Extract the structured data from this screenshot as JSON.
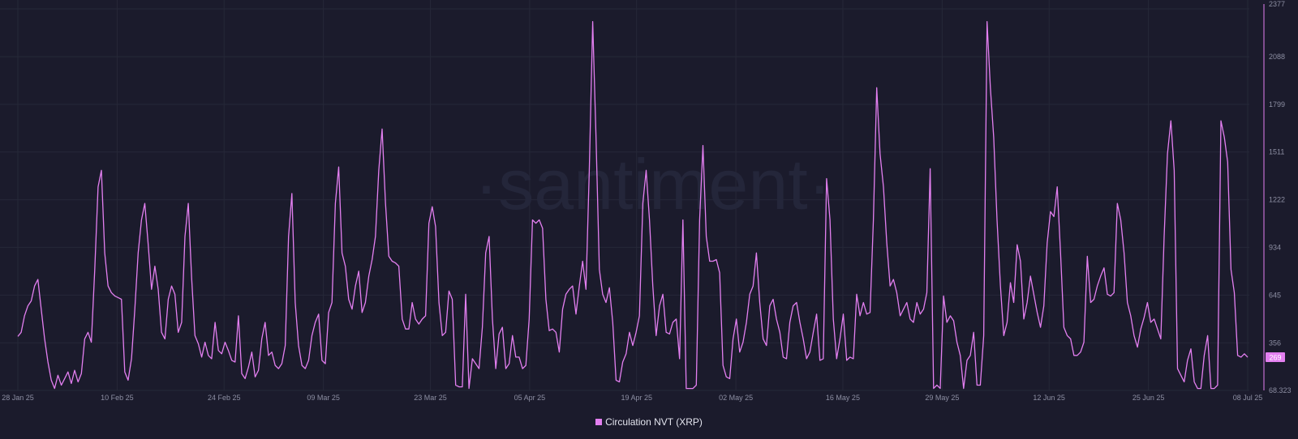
{
  "watermark": "·santiment·",
  "chart_data": {
    "type": "line",
    "series": [
      {
        "name": "Circulation NVT (XRP)",
        "color": "#e37ff0",
        "last_value_label": "269",
        "start_date": "2025-01-28",
        "end_date": "2025-07-08",
        "values": [
          395,
          420,
          520,
          580,
          610,
          700,
          740,
          560,
          380,
          240,
          130,
          80,
          160,
          100,
          140,
          180,
          110,
          190,
          120,
          170,
          380,
          420,
          360,
          800,
          1300,
          1400,
          900,
          700,
          660,
          640,
          630,
          620,
          180,
          130,
          260,
          560,
          900,
          1100,
          1200,
          950,
          680,
          820,
          680,
          420,
          380,
          620,
          700,
          650,
          420,
          480,
          1000,
          1200,
          750,
          400,
          350,
          270,
          360,
          280,
          260,
          480,
          310,
          290,
          360,
          310,
          250,
          240,
          520,
          170,
          140,
          210,
          300,
          150,
          190,
          380,
          480,
          280,
          300,
          220,
          200,
          230,
          340,
          1000,
          1260,
          600,
          340,
          220,
          200,
          250,
          400,
          480,
          530,
          250,
          230,
          540,
          600,
          1200,
          1420,
          900,
          820,
          620,
          560,
          700,
          790,
          540,
          600,
          760,
          860,
          1000,
          1400,
          1650,
          1200,
          880,
          850,
          840,
          820,
          500,
          440,
          440,
          600,
          500,
          470,
          500,
          520,
          1080,
          1180,
          1060,
          600,
          400,
          420,
          670,
          620,
          100,
          90,
          90,
          650,
          80,
          260,
          230,
          200,
          450,
          900,
          1000,
          500,
          200,
          410,
          450,
          200,
          230,
          400,
          270,
          270,
          200,
          220,
          500,
          1100,
          1080,
          1100,
          1050,
          620,
          430,
          440,
          420,
          300,
          560,
          650,
          680,
          700,
          530,
          700,
          850,
          680,
          1400,
          2300,
          1600,
          800,
          650,
          600,
          690,
          480,
          130,
          120,
          240,
          290,
          420,
          340,
          420,
          520,
          1200,
          1400,
          1100,
          700,
          400,
          580,
          650,
          420,
          410,
          480,
          500,
          260,
          1100,
          80,
          80,
          80,
          100,
          1100,
          1550,
          1000,
          850,
          850,
          860,
          780,
          220,
          150,
          140,
          380,
          500,
          300,
          360,
          480,
          650,
          700,
          900,
          600,
          380,
          340,
          580,
          620,
          500,
          420,
          270,
          260,
          480,
          580,
          600,
          480,
          380,
          260,
          300,
          420,
          530,
          250,
          260,
          1350,
          1100,
          500,
          260,
          380,
          530,
          250,
          270,
          260,
          650,
          520,
          600,
          530,
          540,
          1100,
          1900,
          1500,
          1300,
          960,
          700,
          740,
          660,
          520,
          560,
          600,
          500,
          480,
          600,
          530,
          560,
          660,
          1410,
          80,
          100,
          80,
          640,
          480,
          520,
          490,
          360,
          280,
          80,
          250,
          280,
          420,
          100,
          100,
          400,
          2300,
          1900,
          1600,
          1100,
          700,
          400,
          480,
          720,
          600,
          950,
          850,
          500,
          600,
          760,
          650,
          540,
          450,
          580,
          960,
          1150,
          1120,
          1300,
          900,
          450,
          400,
          380,
          280,
          280,
          300,
          360,
          880,
          600,
          620,
          700,
          760,
          810,
          650,
          640,
          660,
          1200,
          1100,
          900,
          600,
          520,
          400,
          330,
          440,
          510,
          600,
          480,
          500,
          440,
          380,
          1000,
          1500,
          1700,
          1400,
          200,
          160,
          120,
          250,
          320,
          120,
          80,
          80,
          280,
          400,
          80,
          80,
          100,
          1700,
          1600,
          1450,
          800,
          660,
          280,
          270,
          290,
          269
        ]
      }
    ],
    "x_tick_labels": [
      "28 Jan 25",
      "10 Feb 25",
      "24 Feb 25",
      "09 Mar 25",
      "23 Mar 25",
      "05 Apr 25",
      "19 Apr 25",
      "02 May 25",
      "16 May 25",
      "29 May 25",
      "12 Jun 25",
      "25 Jun 25",
      "08 Jul 25"
    ],
    "x_tick_dates": [
      "2025-01-28",
      "2025-02-10",
      "2025-02-24",
      "2025-03-09",
      "2025-03-23",
      "2025-04-05",
      "2025-04-19",
      "2025-05-02",
      "2025-05-16",
      "2025-05-29",
      "2025-06-12",
      "2025-06-25",
      "2025-07-08"
    ],
    "y_tick_labels": [
      "2377",
      "2088",
      "1799",
      "1511",
      "1222",
      "934",
      "645",
      "356",
      "68.323"
    ],
    "y_tick_values": [
      2377,
      2088,
      1799,
      1511,
      1222,
      934,
      645,
      356,
      68.323
    ],
    "ylim": [
      68.323,
      2377
    ],
    "grid": true,
    "legend_position": "bottom-center"
  }
}
